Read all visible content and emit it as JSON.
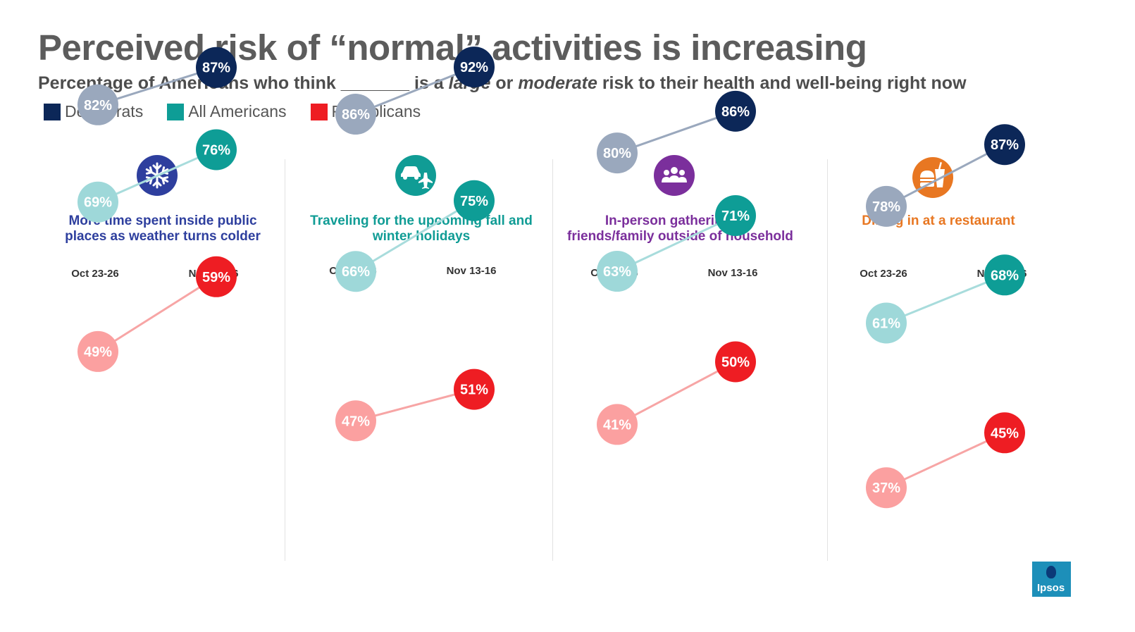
{
  "header": {
    "title": "Perceived risk of “normal” activities is increasing",
    "subtitle_pre": "Percentage of Americans who think _______ is a ",
    "subtitle_large": "large",
    "subtitle_or": " or ",
    "subtitle_moderate": "moderate",
    "subtitle_post": " risk to their health and well-being right now"
  },
  "legend": [
    {
      "label": "Democrats",
      "color": "#0c2758"
    },
    {
      "label": "All Americans",
      "color": "#0e9d96"
    },
    {
      "label": "Republicans",
      "color": "#ee1d23"
    }
  ],
  "colors": {
    "dem_start": "#9aa8bd",
    "dem_end": "#0c2758",
    "all_start": "#9ed8d9",
    "all_end": "#0e9d96",
    "rep_start": "#fba0a0",
    "rep_end": "#ee1d23",
    "dem_line": "#9aa8bd",
    "all_line": "#a8dcdc",
    "rep_line": "#f7a5a5"
  },
  "chart_data": {
    "type": "slope",
    "periods": [
      "Oct 23-26",
      "Nov 13-16"
    ],
    "series_names": [
      "Democrats",
      "All Americans",
      "Republicans"
    ],
    "panels": [
      {
        "title_lines": [
          "More time spent inside public",
          "places as weather turns colder"
        ],
        "color": "#2e3f9e",
        "icon": "snowflake-icon",
        "series": [
          {
            "name": "Democrats",
            "values": [
              82,
              87
            ],
            "labels": [
              "82%",
              "87%"
            ]
          },
          {
            "name": "All Americans",
            "values": [
              69,
              76
            ],
            "labels": [
              "69%",
              "76%"
            ]
          },
          {
            "name": "Republicans",
            "values": [
              49,
              59
            ],
            "labels": [
              "49%",
              "59%"
            ]
          }
        ]
      },
      {
        "title_lines": [
          "Traveling for the upcoming fall and",
          "winter holidays"
        ],
        "color": "#109c95",
        "icon": "car-plane-icon",
        "series": [
          {
            "name": "Democrats",
            "values": [
              86,
              92
            ],
            "labels": [
              "86%",
              "92%"
            ]
          },
          {
            "name": "All Americans",
            "values": [
              66,
              75
            ],
            "labels": [
              "66%",
              "75%"
            ]
          },
          {
            "name": "Republicans",
            "values": [
              47,
              51
            ],
            "labels": [
              "47%",
              "51%"
            ]
          }
        ]
      },
      {
        "title_lines": [
          "In-person gatherings of",
          "friends/family outside of household"
        ],
        "color": "#7b2f9c",
        "icon": "group-icon",
        "series": [
          {
            "name": "Democrats",
            "values": [
              80,
              86
            ],
            "labels": [
              "80%",
              "86%"
            ]
          },
          {
            "name": "All Americans",
            "values": [
              63,
              71
            ],
            "labels": [
              "63%",
              "71%"
            ]
          },
          {
            "name": "Republicans",
            "values": [
              41,
              50
            ],
            "labels": [
              "41%",
              "50%"
            ]
          }
        ]
      },
      {
        "title_lines": [
          "Dining in at a restaurant"
        ],
        "color": "#e87722",
        "icon": "food-icon",
        "series": [
          {
            "name": "Democrats",
            "values": [
              78,
              87
            ],
            "labels": [
              "78%",
              "87%"
            ]
          },
          {
            "name": "All Americans",
            "values": [
              61,
              68
            ],
            "labels": [
              "61%",
              "68%"
            ]
          },
          {
            "name": "Republicans",
            "values": [
              37,
              45
            ],
            "labels": [
              "37%",
              "45%"
            ]
          }
        ]
      }
    ]
  },
  "logo": {
    "text": "Ipsos"
  }
}
